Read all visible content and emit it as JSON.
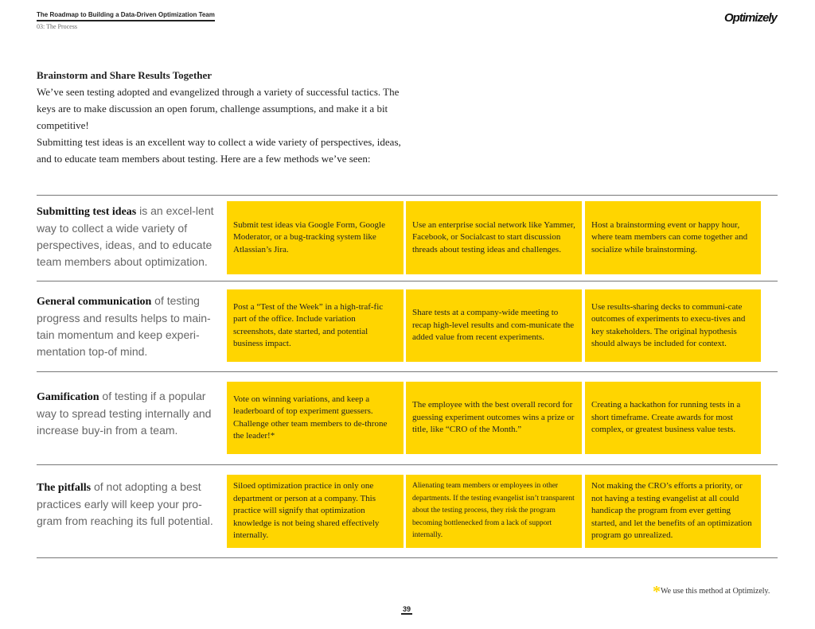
{
  "header": {
    "title": "The Roadmap to Building a Data-Driven Optimization Team",
    "subtitle": "03: The Process",
    "logo": "Optimizely"
  },
  "intro": {
    "heading": "Brainstorm and Share Results Together",
    "p1": "We’ve seen testing adopted and evangelized through a variety of successful tactics. The keys are to make discussion an open forum, challenge assumptions, and make it a bit competitive!",
    "p2": "Submitting test ideas is an excellent way to collect a wide variety of perspectives, ideas, and to educate team members about testing. Here are a few methods we’ve seen:"
  },
  "rows": [
    {
      "lead": "Submitting test ideas",
      "rest": " is an excel-lent way to collect a wide variety of perspectives, ideas, and to educate team members about optimization.",
      "cells": [
        "Submit test ideas via Google Form, Google Moderator, or a bug-tracking system like Atlassian’s Jira.",
        "Use an enterprise social network like Yammer, Facebook, or Socialcast to start discussion threads about testing ideas and challenges.",
        "Host a brainstorming event or happy hour, where team members can come together and socialize while brainstorming."
      ]
    },
    {
      "lead": "General communication",
      "rest": " of testing progress and results helps to main-tain momentum and keep experi-mentation top-of mind.",
      "cells": [
        "Post a “Test of the Week” in a high-traf-fic part of the office. Include variation screenshots, date started, and potential business impact.",
        "Share tests at a company-wide meeting to recap high-level results and com-municate the added value from recent experiments.",
        "Use results-sharing decks to communi-cate outcomes of experiments to execu-tives and key stakeholders. The original hypothesis should always be included for context."
      ]
    },
    {
      "lead": "Gamification",
      "rest": " of testing if a popular way to spread testing internally and increase buy-in from a team.",
      "cells": [
        "Vote on winning variations, and keep a leaderboard of top experiment guessers. Challenge other team members to de-throne the leader!*",
        "The employee with the best overall record for guessing experiment outcomes wins a prize or title, like “CRO of the Month.”",
        "Creating a hackathon for running tests in a short timeframe. Create awards for most complex, or greatest business value tests."
      ]
    },
    {
      "lead": "The pitfalls",
      "rest": " of not adopting a best practices early will keep your pro-gram from reaching its full potential.",
      "cells": [
        "Siloed optimization practice in only one department or person at a company. This practice will signify that optimization knowledge is not being shared effectively internally.",
        "Alienating team members or employees in other departments. If the testing evangelist isn’t transparent about the testing process, they risk the program becoming bottlenecked from a lack of support internally.",
        "Not making the CRO’s efforts a priority, or not having a testing evangelist at all could handicap the program from ever getting started, and let the benefits of an optimization program go unrealized."
      ]
    }
  ],
  "footnote": {
    "star": "*",
    "text": "We use this method at Optimizely."
  },
  "page_number": "39",
  "colors": {
    "accent": "#FFD500"
  }
}
